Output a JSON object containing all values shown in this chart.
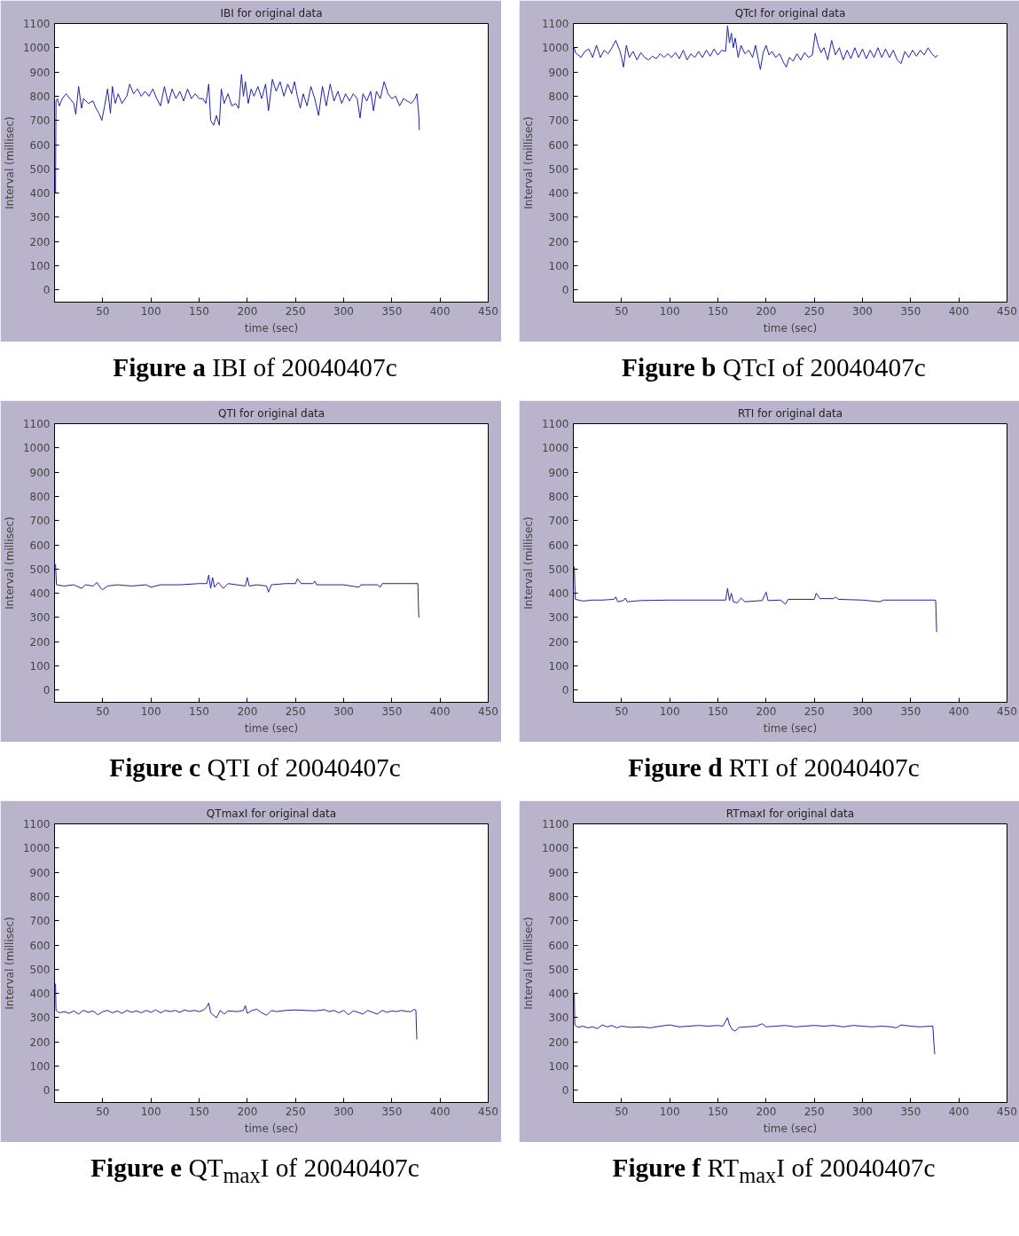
{
  "chart_data": [
    {
      "type": "line",
      "title": "IBI for original data",
      "xlabel": "time (sec)",
      "ylabel": "Interval (millisec)",
      "annotations": [
        "Figure a  IBI of 20040407c"
      ],
      "xlim": [
        0,
        450
      ],
      "ylim": [
        -50,
        1100
      ],
      "xticks": [
        50,
        100,
        150,
        200,
        250,
        300,
        350,
        400,
        450
      ],
      "yticks": [
        0,
        100,
        200,
        300,
        400,
        500,
        600,
        700,
        800,
        900,
        1000,
        1100
      ],
      "grid": false,
      "series": [
        {
          "color": "#2020b0",
          "x": [
            1,
            1.5,
            3,
            5,
            8,
            12,
            16,
            20,
            22,
            25,
            28,
            30,
            35,
            40,
            43,
            46,
            49,
            52,
            55,
            58,
            60,
            63,
            66,
            70,
            75,
            78,
            82,
            86,
            90,
            94,
            98,
            102,
            106,
            110,
            114,
            118,
            122,
            126,
            130,
            134,
            138,
            142,
            146,
            150,
            154,
            157,
            160,
            162,
            165,
            168,
            171,
            173,
            176,
            180,
            184,
            188,
            191,
            194,
            196,
            198,
            201,
            204,
            207,
            211,
            215,
            219,
            222,
            226,
            230,
            234,
            238,
            242,
            246,
            249,
            252,
            255,
            258,
            262,
            266,
            270,
            274,
            278,
            282,
            286,
            290,
            294,
            298,
            302,
            306,
            310,
            314,
            317,
            320,
            324,
            328,
            331,
            334,
            338,
            342,
            346,
            350,
            354,
            358,
            362,
            366,
            370,
            374,
            376,
            378,
            378.5
          ],
          "values": [
            400,
            780,
            790,
            760,
            790,
            810,
            790,
            770,
            725,
            840,
            750,
            790,
            770,
            780,
            750,
            730,
            700,
            760,
            830,
            730,
            840,
            770,
            810,
            770,
            800,
            850,
            810,
            830,
            800,
            820,
            800,
            830,
            790,
            760,
            840,
            770,
            830,
            790,
            820,
            780,
            830,
            790,
            810,
            790,
            790,
            770,
            850,
            700,
            680,
            720,
            680,
            830,
            770,
            810,
            760,
            770,
            750,
            890,
            800,
            860,
            770,
            830,
            800,
            840,
            790,
            850,
            740,
            870,
            820,
            860,
            800,
            850,
            810,
            860,
            800,
            750,
            810,
            760,
            840,
            790,
            720,
            840,
            760,
            850,
            780,
            820,
            770,
            810,
            780,
            810,
            790,
            710,
            810,
            780,
            820,
            740,
            820,
            790,
            860,
            810,
            790,
            800,
            760,
            790,
            780,
            770,
            790,
            810,
            720,
            660
          ]
        }
      ]
    },
    {
      "type": "line",
      "title": "QTcI for original data",
      "xlabel": "time (sec)",
      "ylabel": "Interval (millisec)",
      "annotations": [
        "Figure b  QTcI of 20040407c"
      ],
      "xlim": [
        0,
        450
      ],
      "ylim": [
        -50,
        1100
      ],
      "xticks": [
        50,
        100,
        150,
        200,
        250,
        300,
        350,
        400,
        450
      ],
      "yticks": [
        0,
        100,
        200,
        300,
        400,
        500,
        600,
        700,
        800,
        900,
        1000,
        1100
      ],
      "grid": false,
      "series": [
        {
          "color": "#2020b0",
          "x": [
            1,
            2,
            5,
            8,
            12,
            16,
            20,
            24,
            28,
            32,
            36,
            40,
            44,
            48,
            50,
            52,
            55,
            58,
            62,
            66,
            70,
            74,
            78,
            82,
            86,
            90,
            94,
            98,
            102,
            106,
            110,
            114,
            118,
            122,
            126,
            130,
            134,
            138,
            142,
            146,
            150,
            154,
            158,
            160,
            162,
            164,
            166,
            168,
            171,
            174,
            178,
            182,
            186,
            189,
            192,
            194,
            197,
            200,
            203,
            206,
            210,
            214,
            218,
            221,
            224,
            228,
            232,
            236,
            240,
            244,
            248,
            251,
            254,
            257,
            260,
            264,
            268,
            272,
            276,
            280,
            284,
            288,
            292,
            296,
            300,
            304,
            308,
            312,
            316,
            320,
            324,
            328,
            332,
            336,
            340,
            344,
            348,
            352,
            356,
            360,
            364,
            368,
            372,
            376,
            378
          ],
          "values": [
            1000,
            980,
            970,
            960,
            985,
            995,
            960,
            1010,
            960,
            990,
            975,
            1000,
            1030,
            990,
            960,
            920,
            1010,
            960,
            985,
            950,
            980,
            960,
            950,
            965,
            955,
            975,
            960,
            975,
            960,
            980,
            955,
            990,
            950,
            975,
            960,
            985,
            960,
            990,
            965,
            995,
            970,
            990,
            985,
            1090,
            1020,
            1060,
            1000,
            1040,
            960,
            1010,
            975,
            990,
            960,
            1010,
            950,
            910,
            980,
            1010,
            970,
            985,
            960,
            975,
            940,
            920,
            960,
            945,
            975,
            950,
            980,
            960,
            970,
            1060,
            1010,
            980,
            1000,
            950,
            1030,
            970,
            1000,
            950,
            990,
            955,
            1000,
            960,
            995,
            955,
            990,
            960,
            1000,
            960,
            995,
            960,
            990,
            950,
            935,
            985,
            960,
            990,
            965,
            990,
            970,
            1000,
            975,
            960,
            970
          ]
        }
      ]
    },
    {
      "type": "line",
      "title": "QTI for original data",
      "xlabel": "time (sec)",
      "ylabel": "Interval (millisec)",
      "annotations": [
        "Figure c  QTI of 20040407c"
      ],
      "xlim": [
        0,
        450
      ],
      "ylim": [
        -50,
        1100
      ],
      "xticks": [
        50,
        100,
        150,
        200,
        250,
        300,
        350,
        400,
        450
      ],
      "yticks": [
        0,
        100,
        200,
        300,
        400,
        500,
        600,
        700,
        800,
        900,
        1000,
        1100
      ],
      "grid": false,
      "series": [
        {
          "color": "#2020b0",
          "x": [
            1,
            2,
            10,
            20,
            28,
            32,
            40,
            44,
            48,
            50,
            55,
            65,
            80,
            95,
            100,
            110,
            130,
            150,
            158,
            160,
            162,
            164,
            166,
            170,
            175,
            180,
            198,
            200,
            202,
            210,
            220,
            222,
            225,
            240,
            250,
            252,
            256,
            268,
            270,
            272,
            290,
            300,
            316,
            318,
            335,
            338,
            340,
            360,
            375,
            377,
            377.5,
            378
          ],
          "values": [
            520,
            435,
            430,
            435,
            420,
            435,
            430,
            445,
            420,
            415,
            430,
            435,
            430,
            435,
            425,
            435,
            435,
            440,
            440,
            475,
            420,
            465,
            425,
            445,
            420,
            440,
            430,
            465,
            430,
            435,
            430,
            405,
            435,
            440,
            440,
            460,
            440,
            440,
            450,
            435,
            435,
            435,
            425,
            435,
            435,
            425,
            440,
            440,
            440,
            440,
            360,
            300
          ]
        }
      ]
    },
    {
      "type": "line",
      "title": "RTI for original data",
      "xlabel": "time (sec)",
      "ylabel": "Interval (millisec)",
      "annotations": [
        "Figure d  RTI of 20040407c"
      ],
      "xlim": [
        0,
        450
      ],
      "ylim": [
        -50,
        1100
      ],
      "xticks": [
        50,
        100,
        150,
        200,
        250,
        300,
        350,
        400,
        450
      ],
      "yticks": [
        0,
        100,
        200,
        300,
        400,
        500,
        600,
        700,
        800,
        900,
        1000,
        1100
      ],
      "grid": false,
      "series": [
        {
          "color": "#2020b0",
          "x": [
            1,
            1.5,
            2,
            10,
            20,
            30,
            42,
            44,
            46,
            52,
            54,
            56,
            70,
            100,
            140,
            158,
            160,
            162,
            164,
            166,
            170,
            174,
            178,
            196,
            200,
            202,
            215,
            220,
            223,
            250,
            252,
            256,
            270,
            272,
            275,
            300,
            318,
            322,
            350,
            375,
            376,
            376.5,
            377
          ],
          "values": [
            510,
            440,
            375,
            368,
            372,
            372,
            375,
            385,
            365,
            370,
            380,
            365,
            370,
            372,
            372,
            372,
            420,
            370,
            400,
            365,
            360,
            380,
            365,
            370,
            405,
            370,
            372,
            355,
            375,
            375,
            400,
            378,
            378,
            385,
            375,
            372,
            365,
            372,
            372,
            372,
            370,
            300,
            240
          ]
        }
      ]
    },
    {
      "type": "line",
      "title": "QTmaxI for original data",
      "xlabel": "time (sec)",
      "ylabel": "Interval (millisec)",
      "annotations": [
        "Figure e  QT$_{max}$I of 20040407c"
      ],
      "xlim": [
        0,
        450
      ],
      "ylim": [
        -50,
        1100
      ],
      "xticks": [
        50,
        100,
        150,
        200,
        250,
        300,
        350,
        400,
        450
      ],
      "yticks": [
        0,
        100,
        200,
        300,
        400,
        500,
        600,
        700,
        800,
        900,
        1000,
        1100
      ],
      "grid": false,
      "series": [
        {
          "color": "#2020b0",
          "x": [
            1,
            1.5,
            5,
            10,
            15,
            20,
            25,
            30,
            35,
            40,
            45,
            50,
            55,
            60,
            65,
            70,
            75,
            80,
            85,
            90,
            95,
            100,
            105,
            110,
            115,
            120,
            125,
            130,
            135,
            140,
            145,
            150,
            155,
            158,
            160,
            162,
            165,
            168,
            172,
            176,
            180,
            190,
            196,
            198,
            200,
            205,
            210,
            215,
            220,
            225,
            230,
            240,
            250,
            260,
            270,
            280,
            285,
            290,
            295,
            300,
            305,
            310,
            315,
            320,
            325,
            330,
            335,
            340,
            345,
            350,
            355,
            360,
            365,
            370,
            373,
            375,
            375.5,
            376
          ],
          "values": [
            440,
            330,
            320,
            325,
            318,
            328,
            315,
            330,
            322,
            328,
            312,
            325,
            330,
            320,
            328,
            318,
            330,
            322,
            328,
            320,
            330,
            322,
            332,
            320,
            330,
            325,
            330,
            322,
            332,
            326,
            330,
            325,
            332,
            345,
            360,
            320,
            310,
            300,
            330,
            315,
            328,
            325,
            330,
            350,
            318,
            330,
            335,
            320,
            310,
            330,
            325,
            330,
            332,
            330,
            328,
            333,
            325,
            330,
            320,
            330,
            312,
            328,
            322,
            315,
            330,
            322,
            315,
            330,
            322,
            328,
            325,
            330,
            326,
            325,
            335,
            330,
            260,
            210
          ]
        }
      ]
    },
    {
      "type": "line",
      "title": "RTmaxI for original data",
      "xlabel": "time (sec)",
      "ylabel": "Interval (millisec)",
      "annotations": [
        "Figure f  RT$_{max}$I of 20040407c"
      ],
      "xlim": [
        0,
        450
      ],
      "ylim": [
        -50,
        1100
      ],
      "xticks": [
        50,
        100,
        150,
        200,
        250,
        300,
        350,
        400,
        450
      ],
      "yticks": [
        0,
        100,
        200,
        300,
        400,
        500,
        600,
        700,
        800,
        900,
        1000,
        1100
      ],
      "grid": false,
      "series": [
        {
          "color": "#2020b0",
          "x": [
            1,
            1.5,
            5,
            10,
            15,
            20,
            25,
            30,
            35,
            40,
            45,
            50,
            55,
            60,
            70,
            80,
            90,
            100,
            110,
            120,
            130,
            140,
            150,
            155,
            158,
            160,
            162,
            165,
            168,
            172,
            180,
            190,
            196,
            200,
            210,
            220,
            230,
            240,
            250,
            260,
            270,
            280,
            290,
            300,
            310,
            320,
            330,
            335,
            340,
            350,
            360,
            370,
            373,
            374,
            375
          ],
          "values": [
            400,
            270,
            260,
            265,
            258,
            262,
            255,
            270,
            262,
            268,
            258,
            265,
            262,
            260,
            262,
            258,
            265,
            270,
            262,
            265,
            268,
            265,
            268,
            265,
            285,
            300,
            270,
            250,
            245,
            260,
            262,
            265,
            275,
            262,
            265,
            268,
            262,
            265,
            268,
            265,
            268,
            262,
            268,
            265,
            262,
            265,
            262,
            258,
            270,
            265,
            262,
            265,
            265,
            200,
            150
          ]
        }
      ]
    }
  ]
}
